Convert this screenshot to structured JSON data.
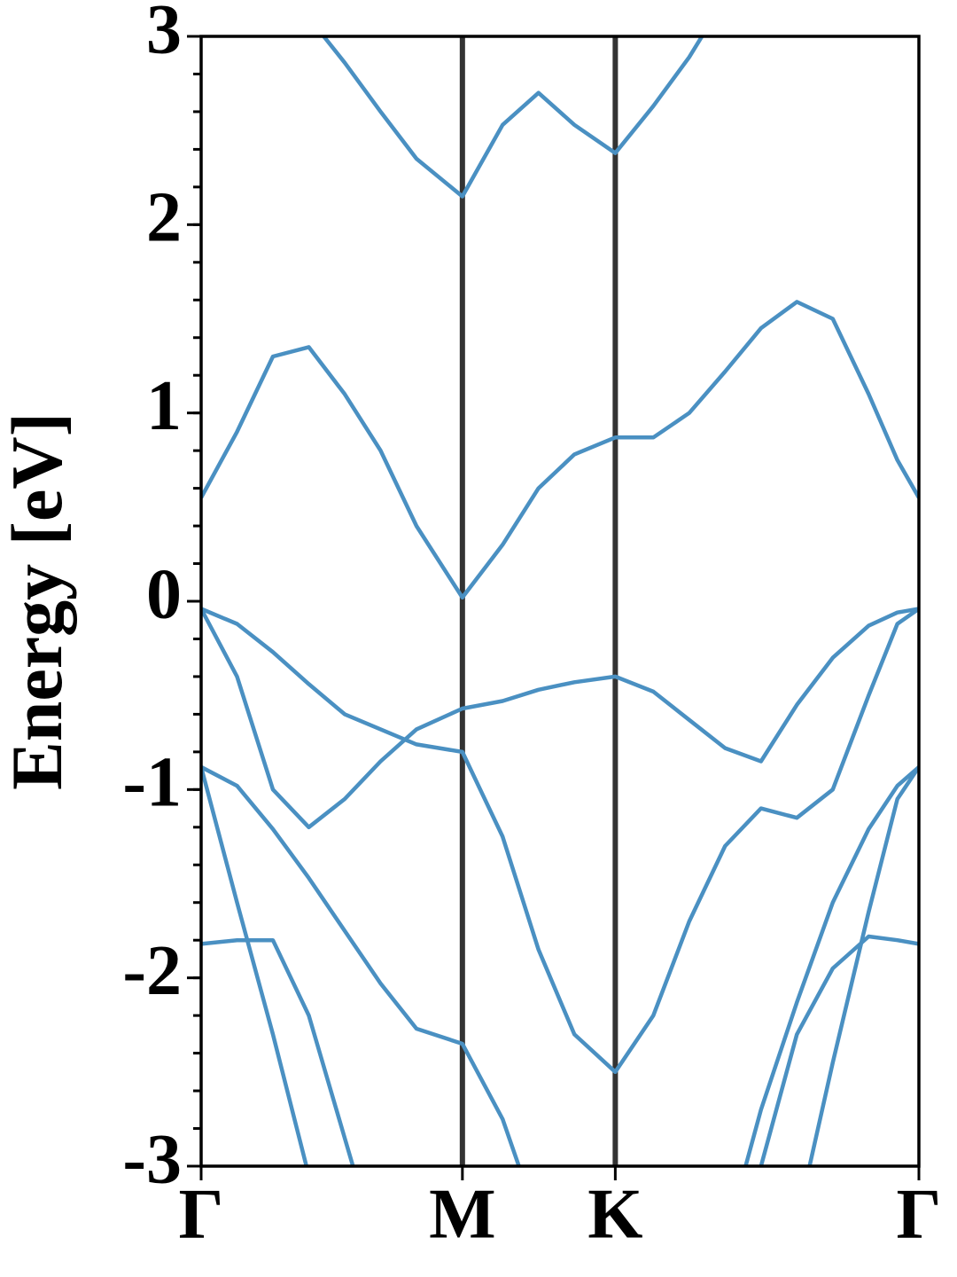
{
  "chart_data": {
    "type": "line",
    "ylabel": "Energy [eV]",
    "x": [
      0,
      0.05,
      0.1,
      0.15,
      0.2,
      0.25,
      0.3,
      0.364,
      0.42,
      0.47,
      0.52,
      0.577,
      0.63,
      0.68,
      0.73,
      0.78,
      0.83,
      0.88,
      0.93,
      0.97,
      1
    ],
    "xlim": [
      0,
      1
    ],
    "xticks": [
      {
        "value": 0,
        "label": "Γ"
      },
      {
        "value": 0.364,
        "label": "M"
      },
      {
        "value": 0.577,
        "label": "K"
      },
      {
        "value": 1,
        "label": "Γ"
      }
    ],
    "vlines_at_xticks": [
      1,
      2
    ],
    "ylim": [
      -3,
      3
    ],
    "yticks": [
      -3,
      -2,
      -1,
      0,
      1,
      2,
      3
    ],
    "y_minor_step": 0.2,
    "series": [
      {
        "color": "#4a90c2",
        "values": [
          null,
          null,
          null,
          3.1,
          2.86,
          2.6,
          2.35,
          2.15,
          2.53,
          2.7,
          2.53,
          2.38,
          2.63,
          2.89,
          3.2,
          null,
          null,
          null,
          null,
          null,
          null
        ]
      },
      {
        "color": "#4a90c2",
        "values": [
          0.55,
          0.9,
          1.3,
          1.35,
          1.1,
          0.8,
          0.4,
          0.02,
          0.3,
          0.6,
          0.78,
          0.87,
          0.87,
          1.0,
          1.22,
          1.45,
          1.59,
          1.5,
          1.1,
          0.75,
          0.55
        ]
      },
      {
        "color": "#4a90c2",
        "values": [
          -0.04,
          -0.12,
          -0.27,
          -0.44,
          -0.6,
          -0.68,
          -0.76,
          -0.8,
          -1.25,
          -1.85,
          -2.3,
          -2.5,
          -2.2,
          -1.7,
          -1.3,
          -1.1,
          -1.15,
          -1.0,
          -0.5,
          -0.12,
          -0.04
        ]
      },
      {
        "color": "#4a90c2",
        "values": [
          -0.04,
          -0.4,
          -1.0,
          -1.2,
          -1.05,
          -0.85,
          -0.68,
          -0.57,
          -0.53,
          -0.47,
          -0.43,
          -0.4,
          -0.48,
          -0.63,
          -0.78,
          -0.85,
          -0.55,
          -0.3,
          -0.13,
          -0.06,
          -0.04
        ]
      },
      {
        "color": "#4a90c2",
        "values": [
          -0.88,
          -0.98,
          -1.21,
          -1.47,
          -1.75,
          -2.03,
          -2.27,
          -2.35,
          -2.75,
          -3.3,
          null,
          null,
          null,
          null,
          -3.4,
          -2.7,
          -2.13,
          -1.6,
          -1.21,
          -0.98,
          -0.88
        ]
      },
      {
        "color": "#4a90c2",
        "values": [
          -0.88,
          -1.6,
          -2.3,
          -3.05,
          null,
          null,
          null,
          null,
          null,
          null,
          null,
          null,
          null,
          null,
          null,
          null,
          -3.3,
          -2.45,
          -1.65,
          -1.05,
          -0.88
        ]
      },
      {
        "color": "#4a90c2",
        "values": [
          -1.82,
          -1.8,
          -1.8,
          -2.2,
          -2.85,
          -3.5,
          null,
          null,
          null,
          null,
          null,
          null,
          null,
          null,
          null,
          -3.0,
          -2.3,
          -1.95,
          -1.78,
          -1.8,
          -1.82
        ]
      }
    ]
  }
}
